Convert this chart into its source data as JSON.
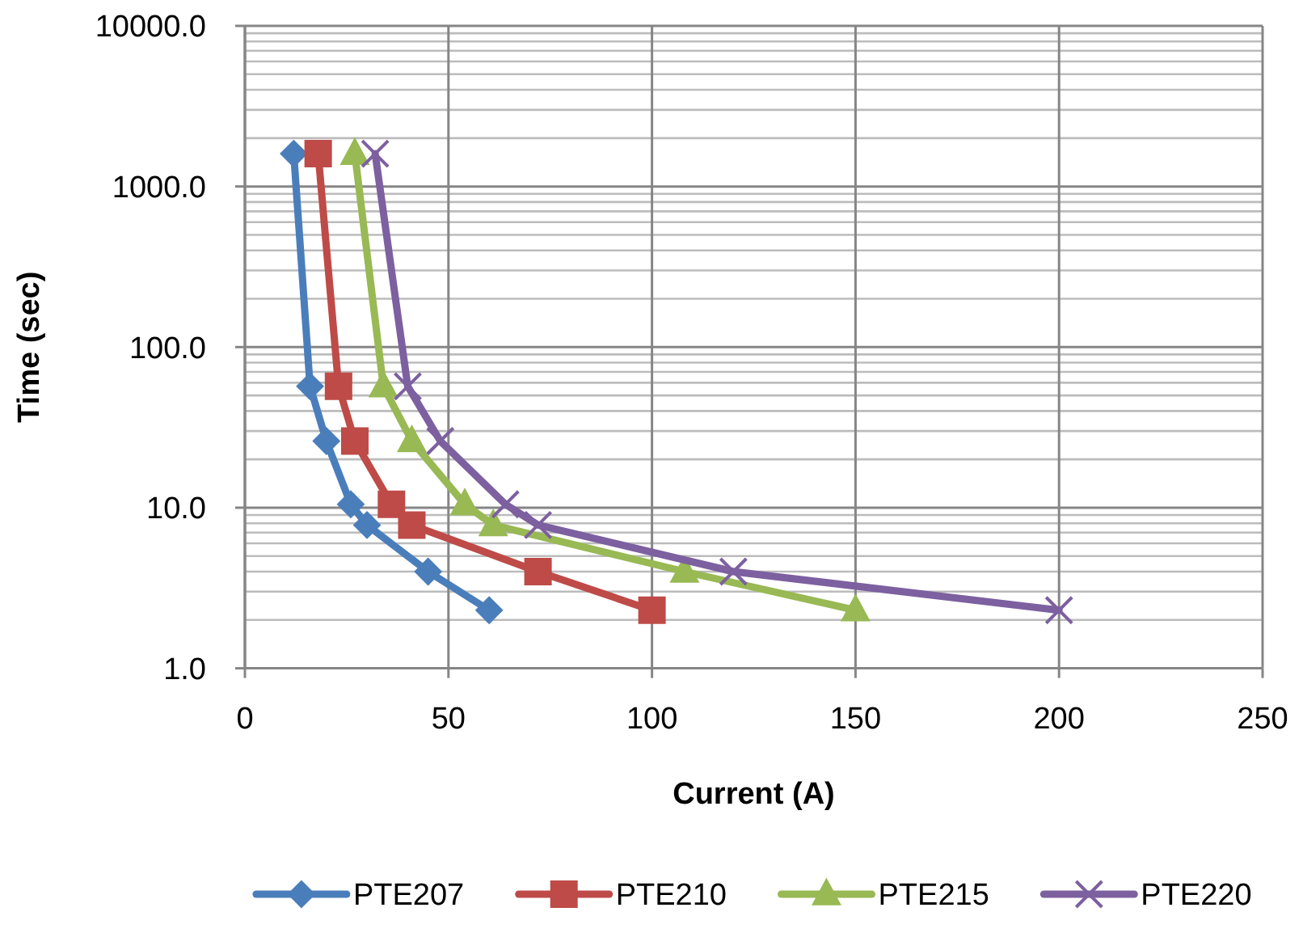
{
  "chart_data": {
    "type": "line",
    "xlabel": "Current (A)",
    "ylabel": "Time (sec)",
    "log": "y",
    "xlim": [
      0,
      250
    ],
    "xticks": [
      0,
      50,
      100,
      150,
      200,
      250
    ],
    "ylim": [
      1,
      10000
    ],
    "yticks": [
      {
        "value": 1,
        "label": "1.0"
      },
      {
        "value": 10,
        "label": "10.0"
      },
      {
        "value": 100,
        "label": "100.0"
      },
      {
        "value": 1000,
        "label": "1000.0"
      },
      {
        "value": 10000,
        "label": "10000.0"
      }
    ],
    "grid": true,
    "legend": "bottom",
    "line_style": "solid",
    "series": [
      {
        "name": "PTE207",
        "color": "#4a7ebb",
        "marker": "diamond",
        "x": [
          12,
          16,
          20,
          26,
          30,
          45,
          60
        ],
        "values": [
          1600,
          57,
          26,
          10.5,
          7.8,
          4,
          2.3
        ]
      },
      {
        "name": "PTE210",
        "color": "#be4b48",
        "marker": "square",
        "x": [
          18,
          23,
          27,
          36,
          41,
          72,
          100
        ],
        "values": [
          1600,
          57,
          26,
          10.5,
          7.8,
          4,
          2.3
        ]
      },
      {
        "name": "PTE215",
        "color": "#98b954",
        "marker": "triangle",
        "x": [
          27,
          34,
          41,
          54,
          61,
          108,
          150
        ],
        "values": [
          1600,
          57,
          26,
          10.5,
          7.8,
          4,
          2.3
        ]
      },
      {
        "name": "PTE220",
        "color": "#7d60a0",
        "marker": "cross",
        "x": [
          32,
          40,
          48,
          64,
          72,
          120,
          200
        ],
        "values": [
          1600,
          57,
          26,
          10.5,
          7.8,
          4,
          2.3
        ]
      }
    ]
  }
}
